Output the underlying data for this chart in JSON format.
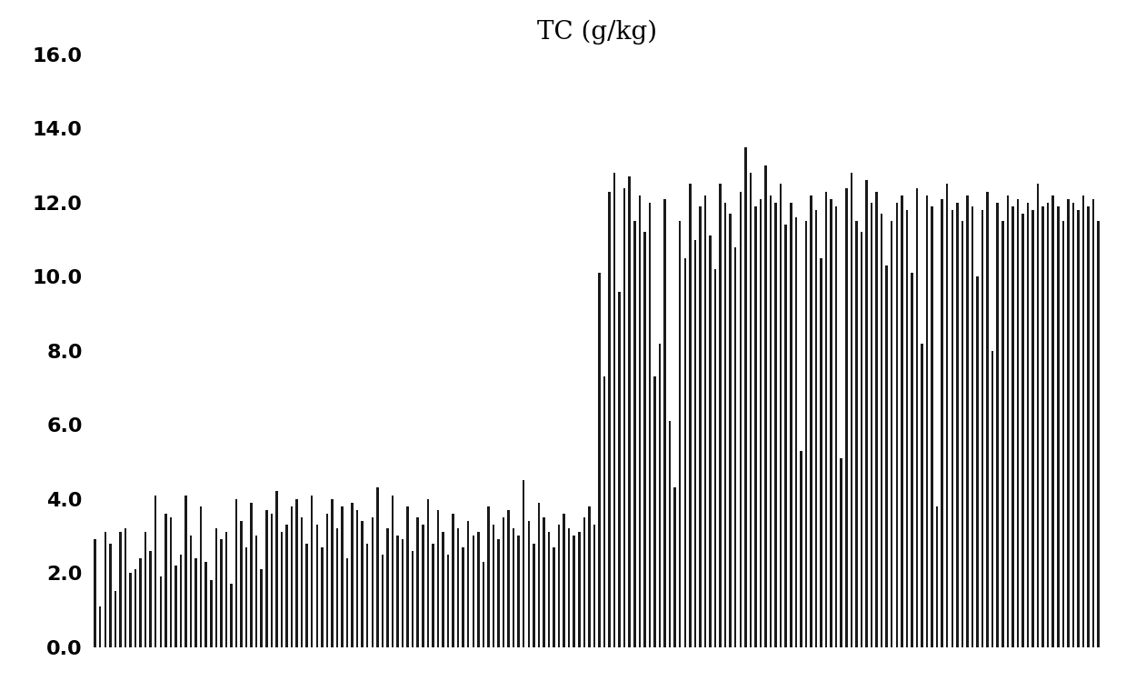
{
  "title": "TC (g/kg)",
  "title_fontsize": 20,
  "bar_color": "#1a1a1a",
  "background_color": "#ffffff",
  "ylim": [
    0,
    16.0
  ],
  "yticks": [
    0.0,
    2.0,
    4.0,
    6.0,
    8.0,
    10.0,
    12.0,
    14.0,
    16.0
  ],
  "ytick_fontsize": 16,
  "values": [
    2.9,
    1.1,
    3.1,
    2.8,
    1.5,
    3.1,
    3.2,
    2.0,
    2.1,
    2.4,
    3.1,
    2.6,
    4.1,
    1.9,
    3.6,
    3.5,
    2.2,
    2.5,
    4.1,
    3.0,
    2.4,
    3.8,
    2.3,
    1.8,
    3.2,
    2.9,
    3.1,
    1.7,
    4.0,
    3.4,
    2.7,
    3.9,
    3.0,
    2.1,
    3.7,
    3.6,
    4.2,
    3.1,
    3.3,
    3.8,
    4.0,
    3.5,
    2.8,
    4.1,
    3.3,
    2.7,
    3.6,
    4.0,
    3.2,
    3.8,
    2.4,
    3.9,
    3.7,
    3.4,
    2.8,
    3.5,
    4.3,
    2.5,
    3.2,
    4.1,
    3.0,
    2.9,
    3.8,
    2.6,
    3.5,
    3.3,
    4.0,
    2.8,
    3.7,
    3.1,
    2.5,
    3.6,
    3.2,
    2.7,
    3.4,
    3.0,
    3.1,
    2.3,
    3.8,
    3.3,
    2.9,
    3.5,
    3.7,
    3.2,
    3.0,
    4.5,
    3.4,
    2.8,
    3.9,
    3.5,
    3.1,
    2.7,
    3.3,
    3.6,
    3.2,
    3.0,
    3.1,
    3.5,
    3.8,
    3.3,
    10.1,
    7.3,
    12.3,
    12.8,
    9.6,
    12.4,
    12.7,
    11.5,
    12.2,
    11.2,
    12.0,
    7.3,
    8.2,
    12.1,
    6.1,
    4.3,
    11.5,
    10.5,
    12.5,
    11.0,
    11.9,
    12.2,
    11.1,
    10.2,
    12.5,
    12.0,
    11.7,
    10.8,
    12.3,
    13.5,
    12.8,
    11.9,
    12.1,
    13.0,
    12.2,
    12.0,
    12.5,
    11.4,
    12.0,
    11.6,
    5.3,
    11.5,
    12.2,
    11.8,
    10.5,
    12.3,
    12.1,
    11.9,
    5.1,
    12.4,
    12.8,
    11.5,
    11.2,
    12.6,
    12.0,
    12.3,
    11.7,
    10.3,
    11.5,
    12.0,
    12.2,
    11.8,
    10.1,
    12.4,
    8.2,
    12.2,
    11.9,
    3.8,
    12.1,
    12.5,
    11.8,
    12.0,
    11.5,
    12.2,
    11.9,
    10.0,
    11.8,
    12.3,
    8.0,
    12.0,
    11.5,
    12.2,
    11.9,
    12.1,
    11.7,
    12.0,
    11.8,
    12.5,
    11.9,
    12.0,
    12.2,
    11.9,
    11.5,
    12.1,
    12.0,
    11.8,
    12.2,
    11.9,
    12.1,
    11.5
  ]
}
